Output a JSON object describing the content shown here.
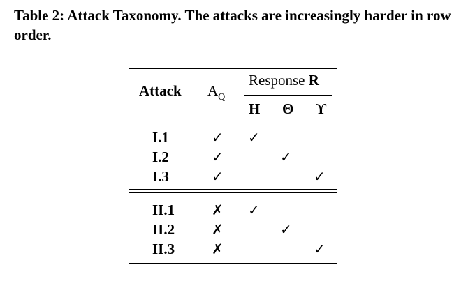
{
  "caption": {
    "label": "Table 2:",
    "text": "Attack Taxonomy. The attacks are increasingly harder in row order."
  },
  "table": {
    "headers": {
      "attack": "Attack",
      "aq_base": "A",
      "aq_sub": "Q",
      "response_text": "Response",
      "response_bold": "R",
      "cols": [
        "H",
        "Θ",
        "ϒ"
      ]
    },
    "rows": [
      {
        "label": "I.1",
        "aq": "✓",
        "h": "✓",
        "theta": "",
        "upsilon": ""
      },
      {
        "label": "I.2",
        "aq": "✓",
        "h": "",
        "theta": "✓",
        "upsilon": ""
      },
      {
        "label": "I.3",
        "aq": "✓",
        "h": "",
        "theta": "",
        "upsilon": "✓"
      },
      {
        "label": "II.1",
        "aq": "✗",
        "h": "✓",
        "theta": "",
        "upsilon": ""
      },
      {
        "label": "II.2",
        "aq": "✗",
        "h": "",
        "theta": "✓",
        "upsilon": ""
      },
      {
        "label": "II.3",
        "aq": "✗",
        "h": "",
        "theta": "",
        "upsilon": "✓"
      }
    ]
  }
}
